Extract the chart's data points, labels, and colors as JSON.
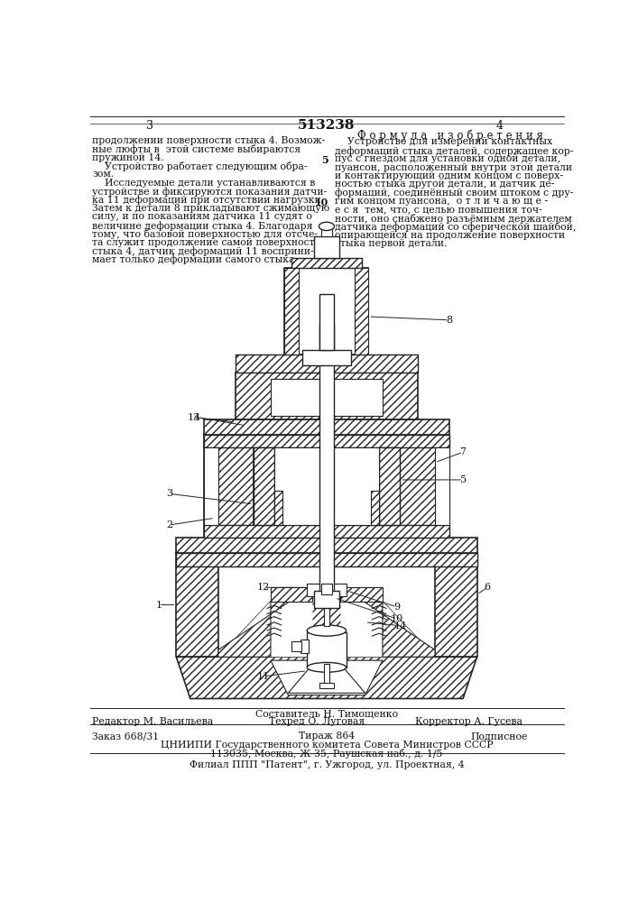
{
  "bg_color": "#ffffff",
  "title_patent": "513238",
  "page_left": "3",
  "page_right": "4",
  "formula_heading": "Ф о р м у л а   и з о б р е т е н и я",
  "left_text": [
    "продолжении поверхности стыка 4. Возмож-",
    "ные люфты в  этой системе выбираются",
    "пружиной 14.",
    "    Устройство работает следующим обра-",
    "зом.",
    "    Исследуемые детали устанавливаются в",
    "устройстве и фиксируются показания датчи-",
    "ка 11 деформаций при отсутствии нагрузки.",
    "Затем к детали 8 прикладывают сжимающую",
    "силу, и по показаниям датчика 11 судят о",
    "величине деформации стыка 4. Благодаря",
    "тому, что базовой поверхностью для отсче-",
    "та служит продолжение самой поверхности",
    "стыка 4, датчик деформаций 11 восприни-",
    "мает только деформации самого стыка."
  ],
  "right_text": [
    "    Устройство для измерений контактных",
    "деформаций стыка деталей, содержащее кор-",
    "пус с гнездом для установки одной детали,",
    "пуансон, расположенный внутри этой детали",
    "и контактирующий одним концом с поверх-",
    "ностью стыка другой детали, и датчик де-",
    "формаций, соединённый своим штоком с дру-",
    "гим концом пуансона,  о т л и ч а ю щ е -",
    "е с я  тем, что, с целью повышения точ-",
    "ности, оно снабжено разъёмным держателем",
    "датчика деформаций со сферической шайбой,",
    "опирающейся на продолжение поверхности",
    "стыка первой детали."
  ],
  "footer_line1": "Составитель Н. Тимощенко",
  "footer_line2_left": "Редактор М. Васильева",
  "footer_line2_mid": "Техред О. Луговая",
  "footer_line2_right": "Корректор А. Гусева",
  "footer_line3_left": "Заказ 668/31",
  "footer_line3_mid": "Тираж 864",
  "footer_line3_right": "Подписное",
  "footer_line4": "ЦНИИПИ Государственного комитета Совета Министров СССР",
  "footer_line5": "113035, Москва, Ж-35, Раушская наб., д. 1/5",
  "footer_line6": "Филиал ППП \"Патент\", г. Ужгород, ул. Проектная, 4",
  "line_color": "#222222",
  "hatch_gray": "#888888"
}
